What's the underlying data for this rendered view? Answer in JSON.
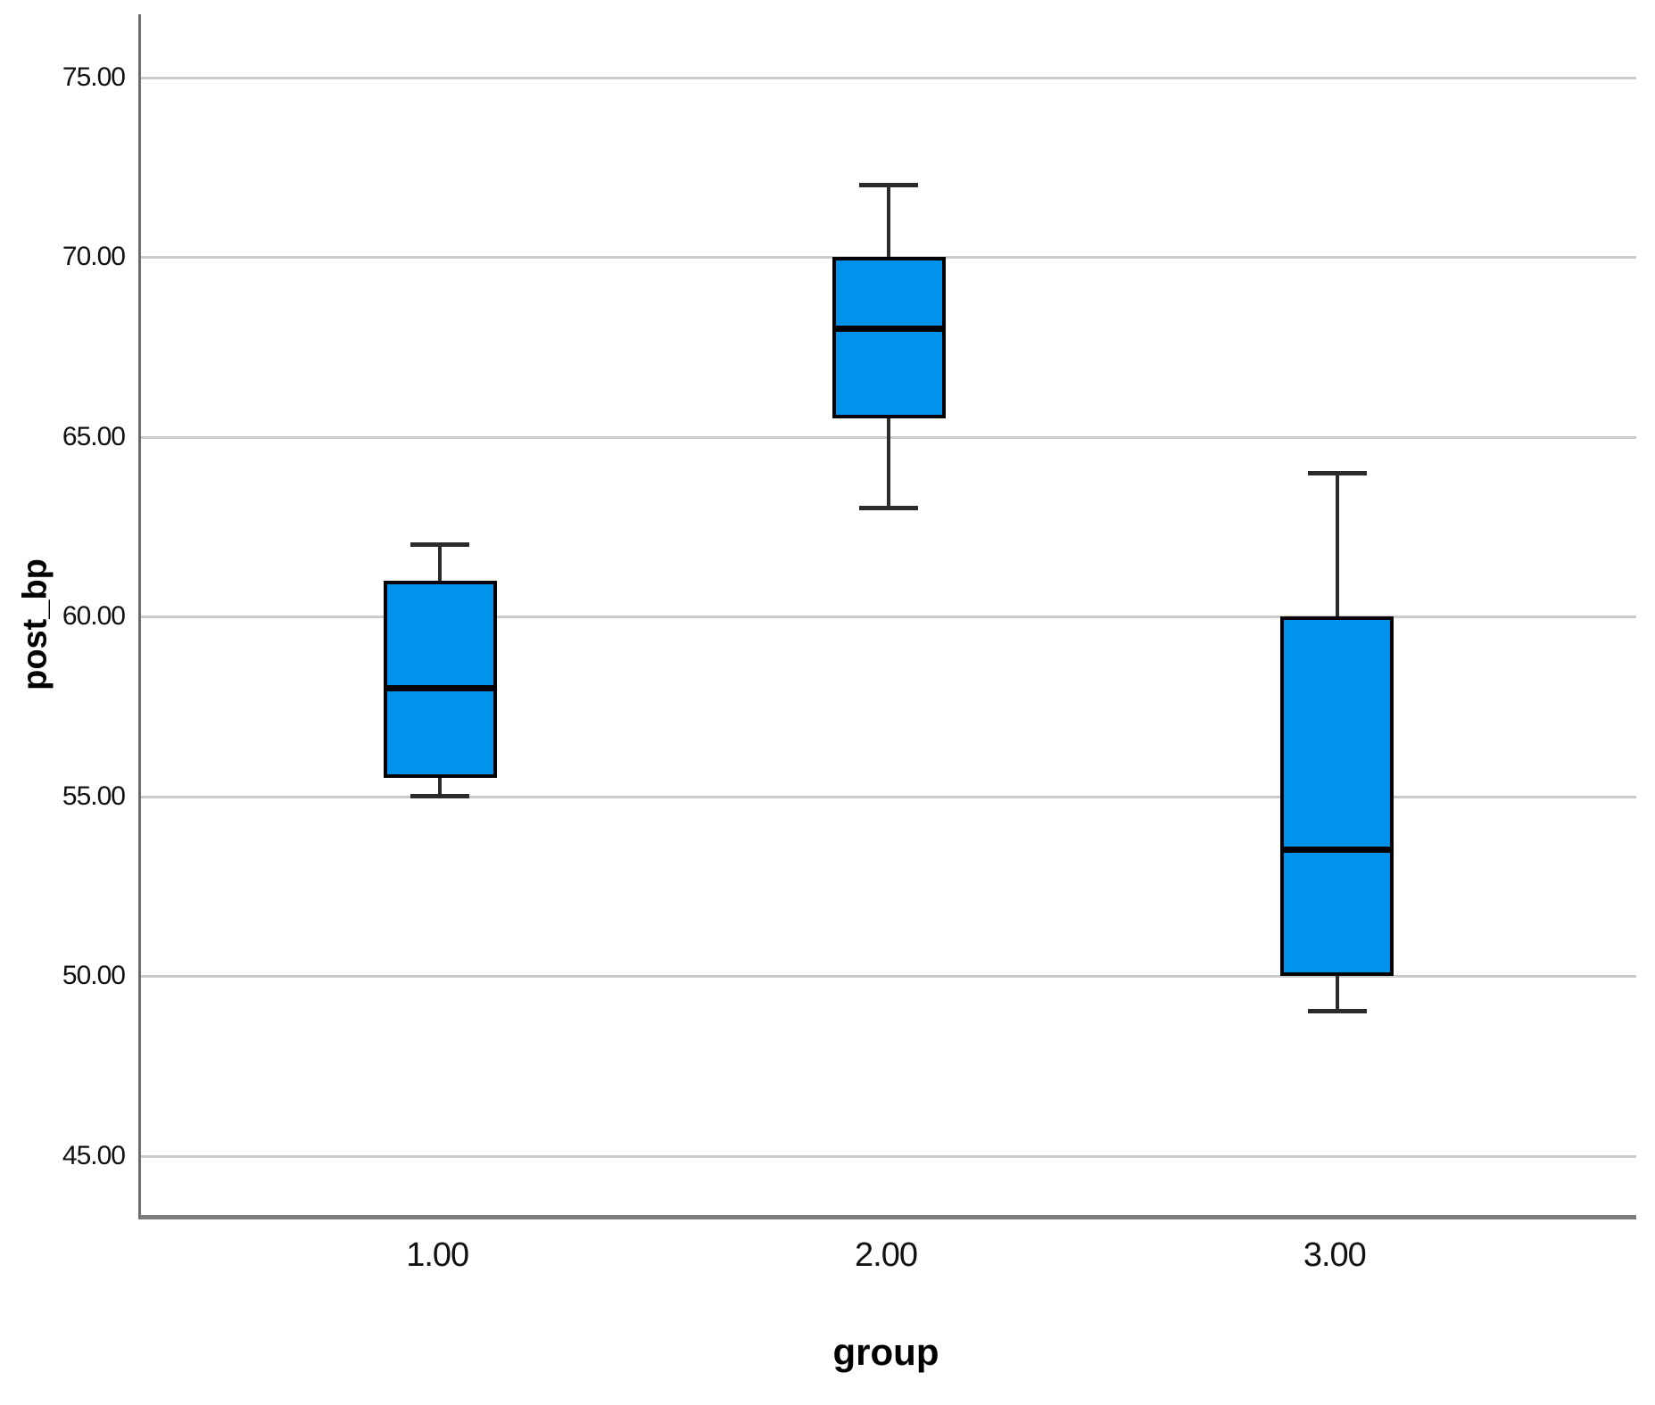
{
  "chart_data": {
    "type": "boxplot",
    "title": "",
    "xlabel": "group",
    "ylabel": "post_bp",
    "categories": [
      "1.00",
      "2.00",
      "3.00"
    ],
    "series": [
      {
        "category": "1.00",
        "min": 55.0,
        "q1": 55.5,
        "median": 58.0,
        "q3": 61.0,
        "max": 62.0
      },
      {
        "category": "2.00",
        "min": 63.0,
        "q1": 65.5,
        "median": 68.0,
        "q3": 70.0,
        "max": 72.0
      },
      {
        "category": "3.00",
        "min": 49.0,
        "q1": 50.0,
        "median": 53.5,
        "q3": 60.0,
        "max": 64.0
      }
    ],
    "y_ticks": [
      {
        "label": "75.00",
        "value": 75
      },
      {
        "label": "70.00",
        "value": 70
      },
      {
        "label": "65.00",
        "value": 65
      },
      {
        "label": "60.00",
        "value": 60
      },
      {
        "label": "55.00",
        "value": 55
      },
      {
        "label": "50.00",
        "value": 50
      },
      {
        "label": "45.00",
        "value": 45
      }
    ],
    "ylim": [
      43.35,
      76.75
    ],
    "grid": true,
    "legend": "none",
    "colors": {
      "box_fill": "#0192EB",
      "box_border": "#000000",
      "median": "#000000",
      "whisker": "#2b2b2b",
      "gridline": "#cbcbcb",
      "y_axis_line": "#6e6e6e",
      "x_axis_line": "#7b7b7b",
      "background": "#ffffff",
      "text": "#000000"
    }
  }
}
